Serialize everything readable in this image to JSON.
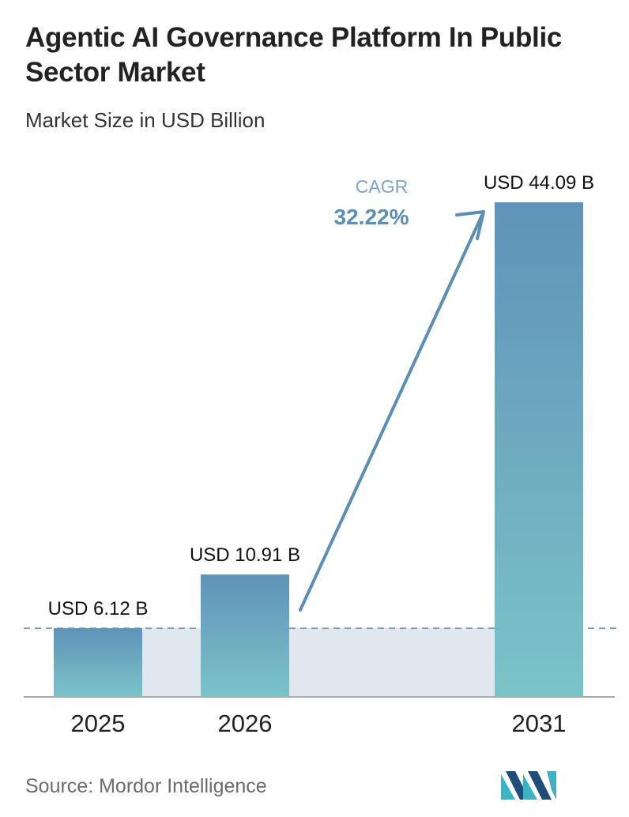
{
  "title": "Agentic AI Governance Platform In Public Sector Market",
  "subtitle": "Market Size in USD Billion",
  "source": "Source: Mordor Intelligence",
  "cagr": {
    "label": "CAGR",
    "value": "32.22%"
  },
  "colors": {
    "bar_top": "#5f93b8",
    "bar_bottom": "#7cc3c9",
    "band": "#dfe7ef",
    "arrow": "#5b8eb3",
    "cagr_label": "#7fa3c2",
    "cagr_value": "#5b8eb3",
    "baseline": "#aaaaaa",
    "dashed_line": "#5b8eb3",
    "logo_dark": "#1f4e79",
    "logo_light": "#3bb3c3"
  },
  "chart_data": {
    "type": "bar",
    "categories": [
      "2025",
      "2026",
      "2031"
    ],
    "values": [
      6.12,
      10.91,
      44.09
    ],
    "data_labels": [
      "USD 6.12 B",
      "USD 10.91 B",
      "USD 44.09 B"
    ],
    "title": "Agentic AI Governance Platform In Public Sector Market",
    "subtitle": "Market Size in USD Billion",
    "ylabel": "",
    "xlabel": "",
    "ylim": [
      0,
      44.09
    ],
    "grid": false,
    "legend": "none"
  }
}
